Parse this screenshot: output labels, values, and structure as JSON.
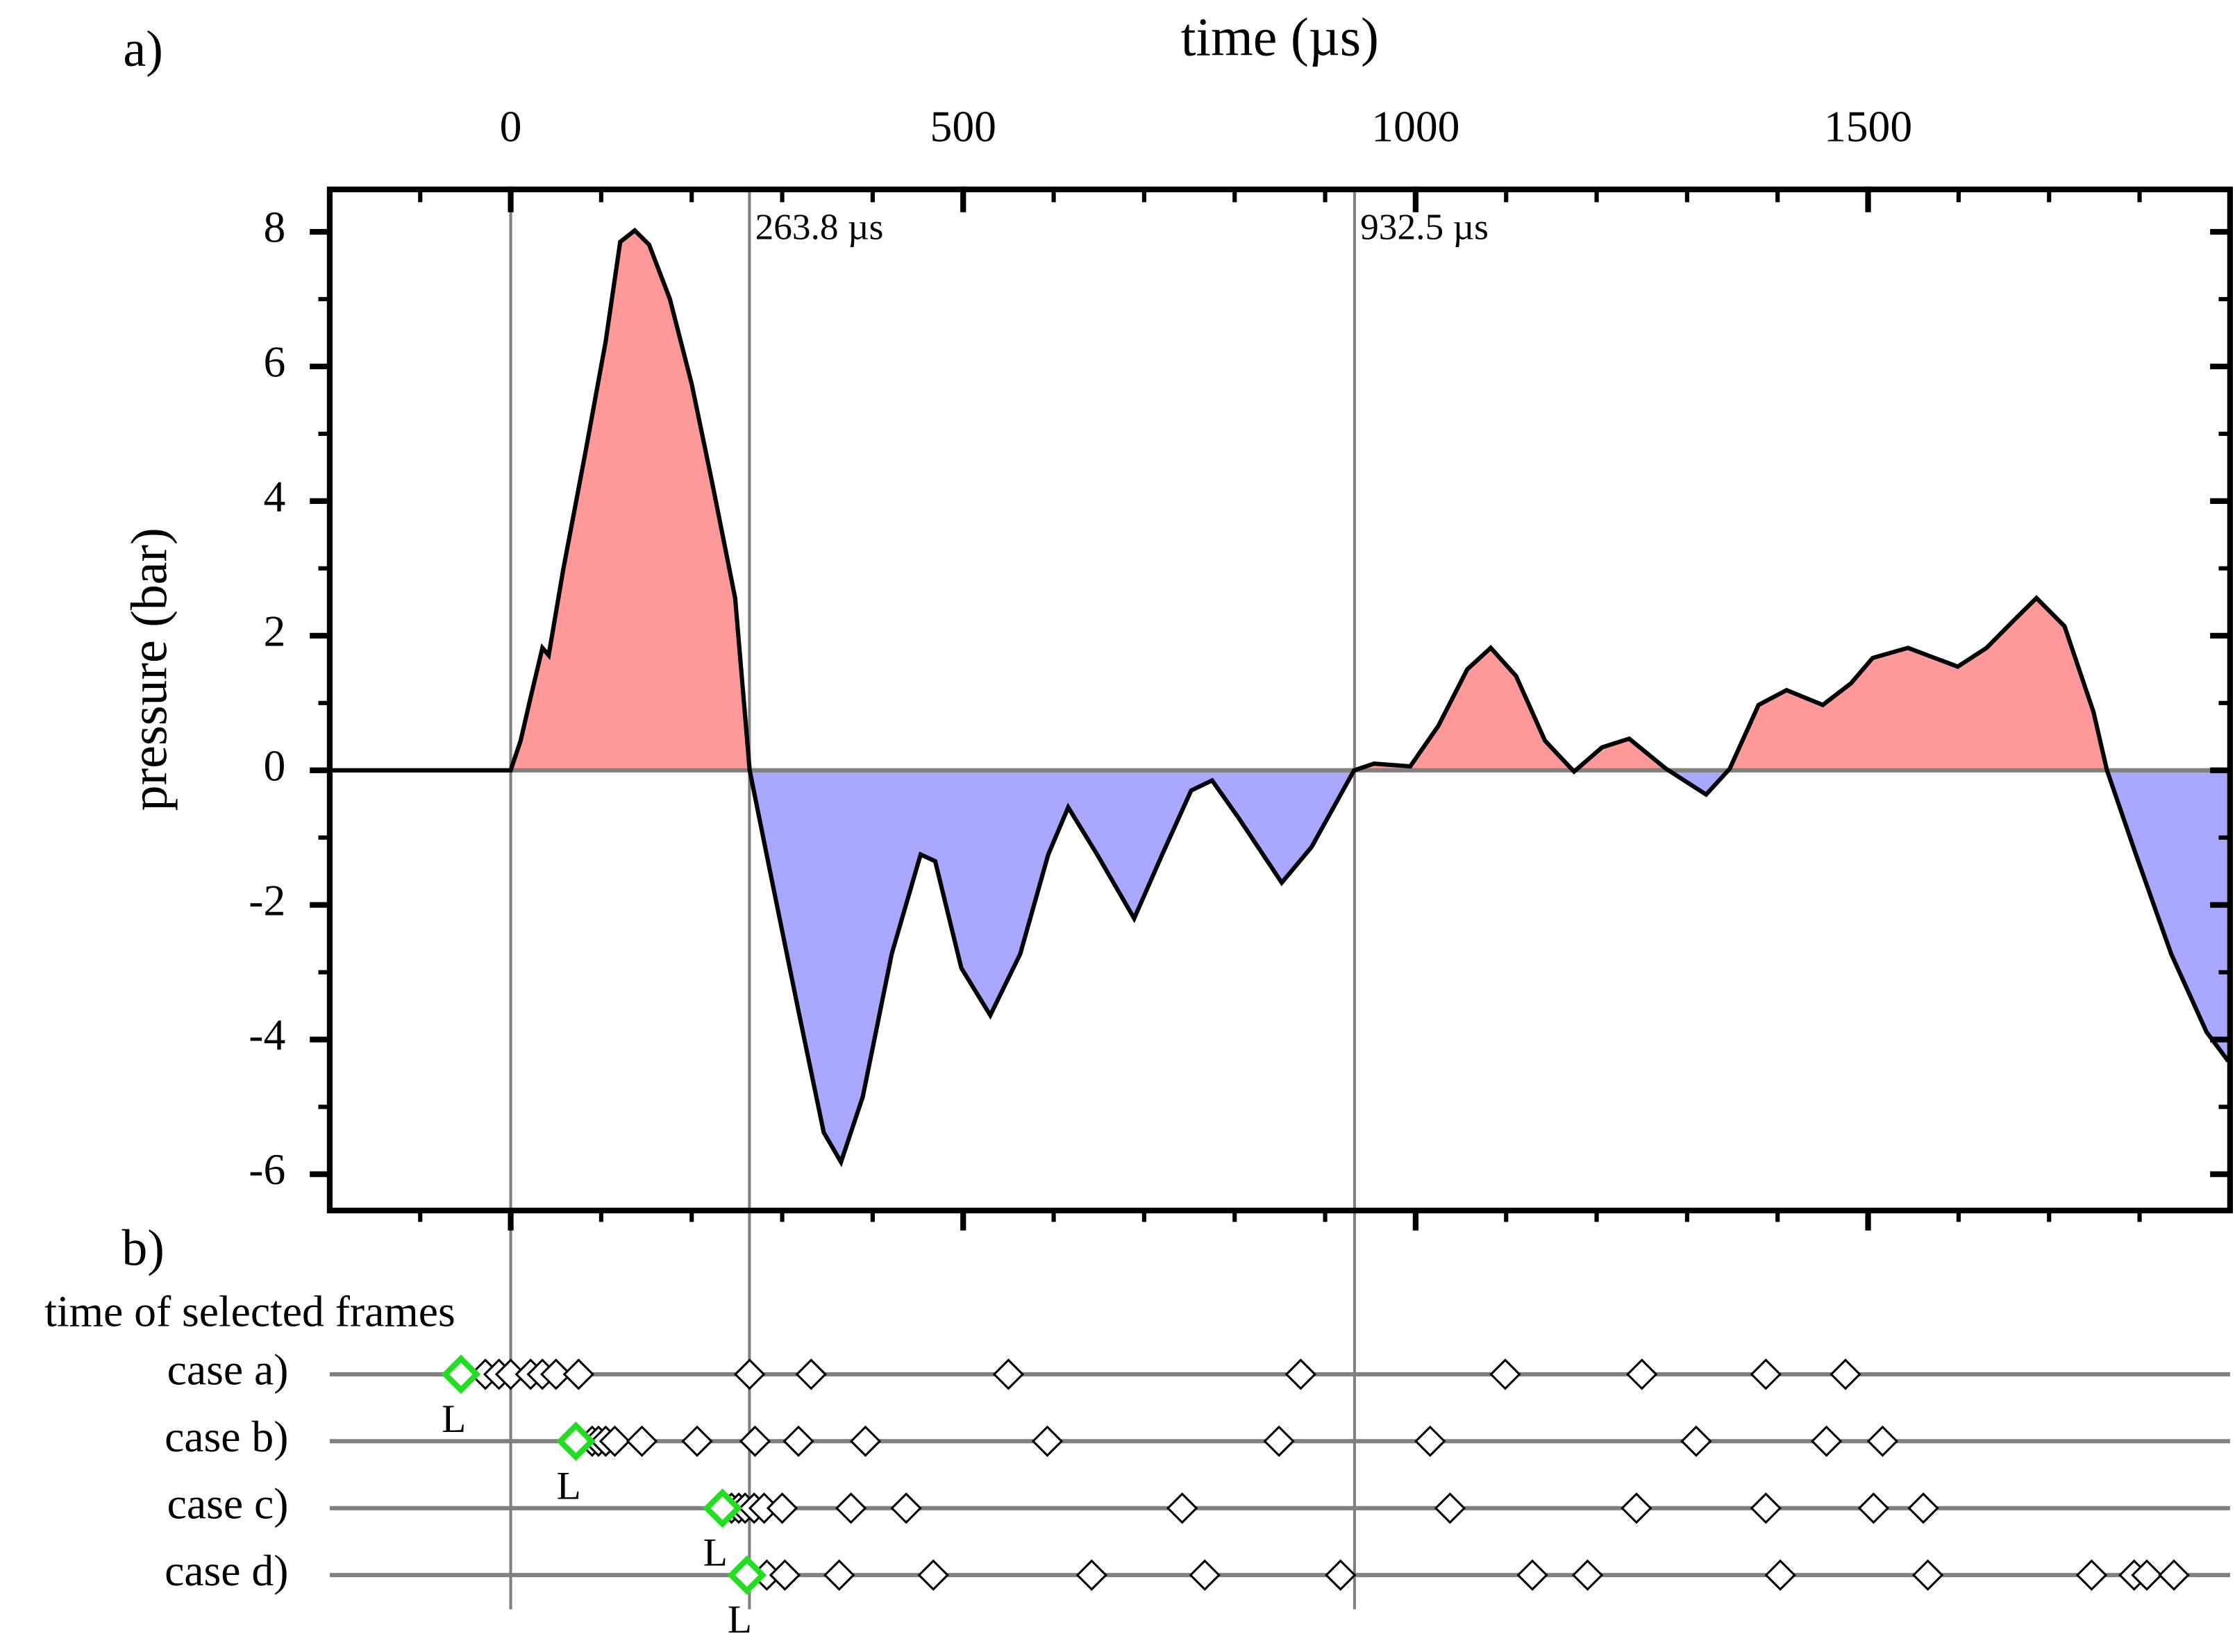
{
  "chart_data": {
    "type": "line",
    "panel_a_label": "a)",
    "panel_b_label": "b)",
    "xlabel": "time (µs)",
    "ylabel": "pressure (bar)",
    "xlim": [
      -200,
      1900
    ],
    "ylim": [
      -6.54,
      8.63
    ],
    "xticks": [
      0,
      500,
      1000,
      1500
    ],
    "xminorticks": [
      -100,
      100,
      200,
      300,
      400,
      600,
      700,
      800,
      900,
      1100,
      1200,
      1300,
      1400,
      1600,
      1700,
      1800
    ],
    "yticks": [
      -6,
      -4,
      -2,
      0,
      2,
      4,
      6,
      8
    ],
    "yminorticks": [
      -5,
      -3,
      -1,
      1,
      3,
      5,
      7
    ],
    "positive_color": "#ff9999",
    "negative_color": "#a8a8ff",
    "line_color": "#000000",
    "markers": [
      {
        "x": 0
      },
      {
        "x": 263.8,
        "label": "263.8 µs"
      },
      {
        "x": 932.5,
        "label": "932.5 µs"
      }
    ],
    "x": [
      -200,
      0,
      11,
      22,
      35,
      42,
      58,
      82,
      105,
      121,
      137,
      153,
      176,
      200,
      223,
      248,
      264,
      286,
      318,
      346,
      365,
      389,
      421,
      453,
      469,
      498,
      530,
      563,
      594,
      616,
      648,
      689,
      720,
      752,
      775,
      805,
      852,
      885,
      932,
      954,
      994,
      1025,
      1057,
      1083,
      1111,
      1143,
      1175,
      1206,
      1236,
      1277,
      1321,
      1347,
      1379,
      1410,
      1450,
      1481,
      1505,
      1544,
      1599,
      1631,
      1662,
      1686,
      1717,
      1749,
      1764,
      1796,
      1835,
      1874,
      1898
    ],
    "series": [
      {
        "name": "pressure",
        "values": [
          0,
          0,
          0.44,
          1.08,
          1.82,
          1.71,
          2.98,
          4.68,
          6.37,
          7.85,
          8.02,
          7.81,
          7.0,
          5.74,
          4.25,
          2.56,
          0,
          -1.46,
          -3.58,
          -5.38,
          -5.82,
          -4.85,
          -2.73,
          -1.25,
          -1.35,
          -2.94,
          -3.64,
          -2.73,
          -1.25,
          -0.55,
          -1.25,
          -2.2,
          -1.25,
          -0.3,
          -0.15,
          -0.72,
          -1.67,
          -1.14,
          0,
          0.1,
          0.06,
          0.66,
          1.5,
          1.82,
          1.4,
          0.44,
          -0.02,
          0.34,
          0.47,
          0.02,
          -0.36,
          0.02,
          0.97,
          1.19,
          0.97,
          1.29,
          1.67,
          1.82,
          1.54,
          1.82,
          2.24,
          2.56,
          2.14,
          0.87,
          0,
          -1.25,
          -2.73,
          -3.89,
          -4.32
        ]
      }
    ],
    "frames_title": "time of selected frames",
    "cases": [
      {
        "name": "case a)",
        "marker_label": "L",
        "laser": -55,
        "frames": [
          -28,
          -13,
          0,
          22,
          35,
          50,
          75,
          264,
          332,
          550,
          873,
          1099,
          1250,
          1387,
          1475
        ]
      },
      {
        "name": "case b)",
        "marker_label": "L",
        "laser": 72,
        "frames": [
          90,
          97,
          105,
          115,
          145,
          206,
          270,
          318,
          392,
          593,
          849,
          1016,
          1310,
          1454,
          1516
        ]
      },
      {
        "name": "case c)",
        "marker_label": "L",
        "laser": 234,
        "frames": [
          244,
          252,
          259,
          269,
          280,
          300,
          376,
          437,
          742,
          1038,
          1244,
          1387,
          1506,
          1561
        ]
      },
      {
        "name": "case d)",
        "marker_label": "L",
        "laser": 261,
        "frames": [
          283,
          303,
          363,
          467,
          642,
          767,
          917,
          1129,
          1190,
          1403,
          1566,
          1747,
          1794,
          1808,
          1838
        ]
      }
    ]
  }
}
